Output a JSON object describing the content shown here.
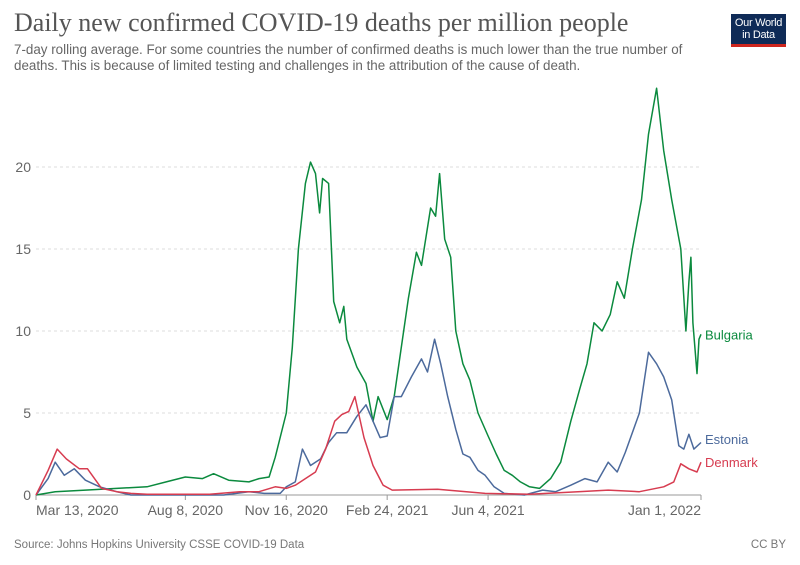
{
  "header": {
    "title": "Daily new confirmed COVID-19 deaths per million people",
    "subtitle": "7-day rolling average. For some countries the number of confirmed deaths is much lower than the true number of deaths. This is because of limited testing and challenges in the attribution of the cause of death.",
    "logo": "Our World in Data"
  },
  "footer": {
    "source": "Source: Johns Hopkins University CSSE COVID-19 Data",
    "license": "CC BY"
  },
  "chart_data": {
    "type": "line",
    "title": "Daily new confirmed COVID-19 deaths per million people",
    "xlabel": "",
    "ylabel": "",
    "xlim": [
      "2020-03-13",
      "2022-01-01"
    ],
    "ylim": [
      0,
      25
    ],
    "yticks": [
      0,
      5,
      10,
      15,
      20
    ],
    "xticks": [
      {
        "date": "2020-03-13",
        "label": "Mar 13, 2020"
      },
      {
        "date": "2020-08-08",
        "label": "Aug 8, 2020"
      },
      {
        "date": "2020-11-16",
        "label": "Nov 16, 2020"
      },
      {
        "date": "2021-02-24",
        "label": "Feb 24, 2021"
      },
      {
        "date": "2021-06-04",
        "label": "Jun 4, 2021"
      },
      {
        "date": "2022-01-01",
        "label": "Jan 1, 2022"
      }
    ],
    "grid": "horizontal dashed",
    "legend": "end-of-line labels",
    "series": [
      {
        "name": "Bulgaria",
        "color": "#00847e",
        "stroke": "#0b8a3e",
        "points": [
          [
            "2020-03-13",
            0
          ],
          [
            "2020-04-01",
            0.2
          ],
          [
            "2020-05-01",
            0.3
          ],
          [
            "2020-06-01",
            0.4
          ],
          [
            "2020-07-01",
            0.5
          ],
          [
            "2020-07-20",
            0.8
          ],
          [
            "2020-08-08",
            1.1
          ],
          [
            "2020-08-25",
            1.0
          ],
          [
            "2020-09-05",
            1.3
          ],
          [
            "2020-09-20",
            0.9
          ],
          [
            "2020-10-10",
            0.8
          ],
          [
            "2020-10-20",
            1.0
          ],
          [
            "2020-10-30",
            1.1
          ],
          [
            "2020-11-05",
            2.3
          ],
          [
            "2020-11-16",
            5
          ],
          [
            "2020-11-22",
            9
          ],
          [
            "2020-11-28",
            15
          ],
          [
            "2020-12-05",
            19
          ],
          [
            "2020-12-10",
            20.3
          ],
          [
            "2020-12-15",
            19.6
          ],
          [
            "2020-12-19",
            17.2
          ],
          [
            "2020-12-22",
            19.3
          ],
          [
            "2020-12-28",
            19.0
          ],
          [
            "2021-01-02",
            11.8
          ],
          [
            "2021-01-08",
            10.5
          ],
          [
            "2021-01-12",
            11.5
          ],
          [
            "2021-01-15",
            9.5
          ],
          [
            "2021-01-25",
            7.8
          ],
          [
            "2021-02-03",
            6.8
          ],
          [
            "2021-02-10",
            4.5
          ],
          [
            "2021-02-15",
            6
          ],
          [
            "2021-02-24",
            4.6
          ],
          [
            "2021-03-03",
            6
          ],
          [
            "2021-03-10",
            9
          ],
          [
            "2021-03-17",
            12
          ],
          [
            "2021-03-25",
            14.8
          ],
          [
            "2021-03-30",
            14
          ],
          [
            "2021-04-08",
            17.5
          ],
          [
            "2021-04-13",
            17
          ],
          [
            "2021-04-17",
            19.6
          ],
          [
            "2021-04-22",
            15.6
          ],
          [
            "2021-04-28",
            14.5
          ],
          [
            "2021-05-03",
            10
          ],
          [
            "2021-05-10",
            8
          ],
          [
            "2021-05-17",
            7
          ],
          [
            "2021-05-25",
            5
          ],
          [
            "2021-06-04",
            3.6
          ],
          [
            "2021-06-12",
            2.5
          ],
          [
            "2021-06-20",
            1.5
          ],
          [
            "2021-06-28",
            1.2
          ],
          [
            "2021-07-06",
            0.8
          ],
          [
            "2021-07-15",
            0.5
          ],
          [
            "2021-07-25",
            0.4
          ],
          [
            "2021-08-05",
            1
          ],
          [
            "2021-08-15",
            2
          ],
          [
            "2021-08-25",
            4.5
          ],
          [
            "2021-09-03",
            6.5
          ],
          [
            "2021-09-10",
            8
          ],
          [
            "2021-09-17",
            10.5
          ],
          [
            "2021-09-25",
            10
          ],
          [
            "2021-10-03",
            11
          ],
          [
            "2021-10-10",
            13
          ],
          [
            "2021-10-17",
            12
          ],
          [
            "2021-10-25",
            15
          ],
          [
            "2021-11-03",
            18
          ],
          [
            "2021-11-10",
            22
          ],
          [
            "2021-11-18",
            24.8
          ],
          [
            "2021-11-25",
            21
          ],
          [
            "2021-12-03",
            18
          ],
          [
            "2021-12-12",
            15
          ],
          [
            "2021-12-17",
            10
          ],
          [
            "2021-12-20",
            13
          ],
          [
            "2021-12-22",
            14.5
          ],
          [
            "2021-12-24",
            10.5
          ],
          [
            "2021-12-28",
            7.4
          ],
          [
            "2021-12-30",
            9.5
          ],
          [
            "2022-01-01",
            9.8
          ]
        ]
      },
      {
        "name": "Estonia",
        "stroke": "#4c6a9c",
        "points": [
          [
            "2020-03-13",
            0
          ],
          [
            "2020-03-25",
            1.0
          ],
          [
            "2020-04-01",
            2.0
          ],
          [
            "2020-04-10",
            1.2
          ],
          [
            "2020-04-20",
            1.6
          ],
          [
            "2020-05-01",
            0.9
          ],
          [
            "2020-05-15",
            0.5
          ],
          [
            "2020-06-01",
            0.2
          ],
          [
            "2020-06-15",
            0
          ],
          [
            "2020-08-01",
            0
          ],
          [
            "2020-09-15",
            0
          ],
          [
            "2020-10-10",
            0.2
          ],
          [
            "2020-10-25",
            0.1
          ],
          [
            "2020-11-10",
            0.1
          ],
          [
            "2020-11-16",
            0.5
          ],
          [
            "2020-11-25",
            0.8
          ],
          [
            "2020-12-02",
            2.8
          ],
          [
            "2020-12-10",
            1.8
          ],
          [
            "2020-12-20",
            2.2
          ],
          [
            "2020-12-28",
            3.2
          ],
          [
            "2021-01-05",
            3.8
          ],
          [
            "2021-01-15",
            3.8
          ],
          [
            "2021-01-25",
            4.8
          ],
          [
            "2021-02-03",
            5.5
          ],
          [
            "2021-02-10",
            4.5
          ],
          [
            "2021-02-17",
            3.5
          ],
          [
            "2021-02-24",
            3.6
          ],
          [
            "2021-03-03",
            6
          ],
          [
            "2021-03-10",
            6
          ],
          [
            "2021-03-20",
            7.2
          ],
          [
            "2021-03-30",
            8.3
          ],
          [
            "2021-04-05",
            7.5
          ],
          [
            "2021-04-12",
            9.5
          ],
          [
            "2021-04-18",
            8
          ],
          [
            "2021-04-25",
            6
          ],
          [
            "2021-05-03",
            4
          ],
          [
            "2021-05-10",
            2.5
          ],
          [
            "2021-05-17",
            2.3
          ],
          [
            "2021-05-25",
            1.5
          ],
          [
            "2021-06-01",
            1.2
          ],
          [
            "2021-06-10",
            0.5
          ],
          [
            "2021-06-20",
            0.1
          ],
          [
            "2021-07-10",
            0
          ],
          [
            "2021-07-28",
            0.3
          ],
          [
            "2021-08-10",
            0.2
          ],
          [
            "2021-08-25",
            0.6
          ],
          [
            "2021-09-08",
            1.0
          ],
          [
            "2021-09-20",
            0.8
          ],
          [
            "2021-10-01",
            2
          ],
          [
            "2021-10-10",
            1.4
          ],
          [
            "2021-10-18",
            2.6
          ],
          [
            "2021-11-01",
            5
          ],
          [
            "2021-11-10",
            8.7
          ],
          [
            "2021-11-18",
            8
          ],
          [
            "2021-11-25",
            7.2
          ],
          [
            "2021-12-03",
            5.8
          ],
          [
            "2021-12-10",
            3
          ],
          [
            "2021-12-15",
            2.8
          ],
          [
            "2021-12-20",
            3.7
          ],
          [
            "2021-12-25",
            2.8
          ],
          [
            "2022-01-01",
            3.2
          ]
        ]
      },
      {
        "name": "Denmark",
        "stroke": "#d73c50",
        "points": [
          [
            "2020-03-13",
            0
          ],
          [
            "2020-03-25",
            1.5
          ],
          [
            "2020-04-03",
            2.8
          ],
          [
            "2020-04-12",
            2.2
          ],
          [
            "2020-04-25",
            1.6
          ],
          [
            "2020-05-03",
            1.6
          ],
          [
            "2020-05-10",
            1.0
          ],
          [
            "2020-05-17",
            0.4
          ],
          [
            "2020-06-01",
            0.2
          ],
          [
            "2020-06-15",
            0.1
          ],
          [
            "2020-07-01",
            0.05
          ],
          [
            "2020-09-01",
            0.05
          ],
          [
            "2020-10-01",
            0.2
          ],
          [
            "2020-10-20",
            0.2
          ],
          [
            "2020-11-05",
            0.5
          ],
          [
            "2020-11-16",
            0.4
          ],
          [
            "2020-11-25",
            0.6
          ],
          [
            "2020-12-05",
            1.0
          ],
          [
            "2020-12-15",
            1.4
          ],
          [
            "2020-12-25",
            2.8
          ],
          [
            "2021-01-03",
            4.5
          ],
          [
            "2021-01-10",
            4.9
          ],
          [
            "2021-01-17",
            5.1
          ],
          [
            "2021-01-23",
            6
          ],
          [
            "2021-02-01",
            3.5
          ],
          [
            "2021-02-10",
            1.8
          ],
          [
            "2021-02-20",
            0.6
          ],
          [
            "2021-03-01",
            0.3
          ],
          [
            "2021-04-15",
            0.35
          ],
          [
            "2021-06-01",
            0.1
          ],
          [
            "2021-07-15",
            0.05
          ],
          [
            "2021-09-01",
            0.2
          ],
          [
            "2021-10-01",
            0.3
          ],
          [
            "2021-11-01",
            0.2
          ],
          [
            "2021-11-25",
            0.5
          ],
          [
            "2021-12-05",
            0.8
          ],
          [
            "2021-12-12",
            1.9
          ],
          [
            "2021-12-20",
            1.6
          ],
          [
            "2021-12-28",
            1.4
          ],
          [
            "2022-01-01",
            2.0
          ]
        ]
      }
    ]
  }
}
